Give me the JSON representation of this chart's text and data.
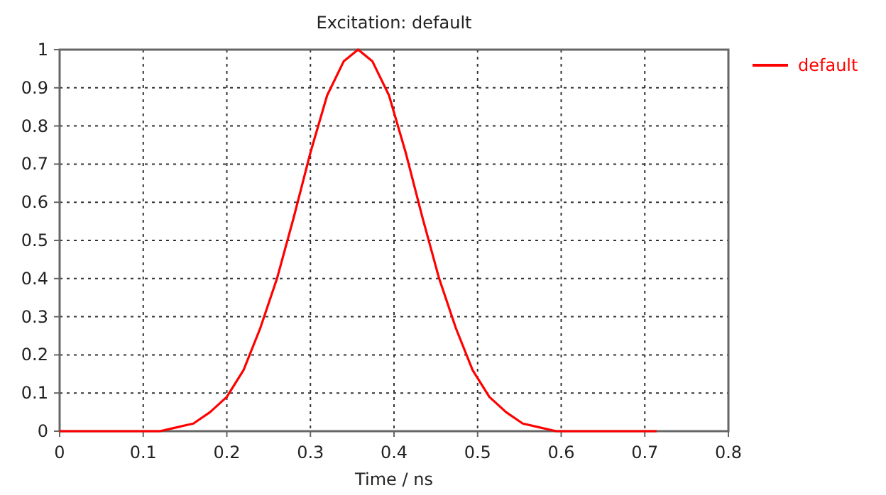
{
  "chart_data": {
    "type": "line",
    "title": "Excitation: default",
    "xlabel": "Time / ns",
    "series": [
      {
        "name": "default",
        "color": "#ff0000",
        "x": [
          0,
          0.1,
          0.12,
          0.14,
          0.16,
          0.18,
          0.2,
          0.22,
          0.24,
          0.26,
          0.28,
          0.3,
          0.32,
          0.34,
          0.357,
          0.374,
          0.394,
          0.414,
          0.434,
          0.454,
          0.474,
          0.494,
          0.514,
          0.534,
          0.554,
          0.574,
          0.594,
          0.614,
          0.714
        ],
        "values": [
          0,
          0,
          0,
          0.01,
          0.02,
          0.05,
          0.09,
          0.16,
          0.27,
          0.4,
          0.56,
          0.73,
          0.88,
          0.97,
          1,
          0.97,
          0.88,
          0.73,
          0.56,
          0.4,
          0.27,
          0.16,
          0.09,
          0.05,
          0.02,
          0.01,
          0,
          0,
          0
        ]
      }
    ],
    "xlim": [
      0,
      0.8
    ],
    "xticks": [
      0,
      0.1,
      0.2,
      0.3,
      0.4,
      0.5,
      0.6,
      0.7,
      0.8
    ],
    "ylim": [
      0,
      1
    ],
    "yticks": [
      0,
      0.1,
      0.2,
      0.3,
      0.4,
      0.5,
      0.6,
      0.7,
      0.8,
      0.9,
      1
    ],
    "grid": true,
    "legend": "right",
    "line_style": "solid",
    "marker": "none"
  }
}
